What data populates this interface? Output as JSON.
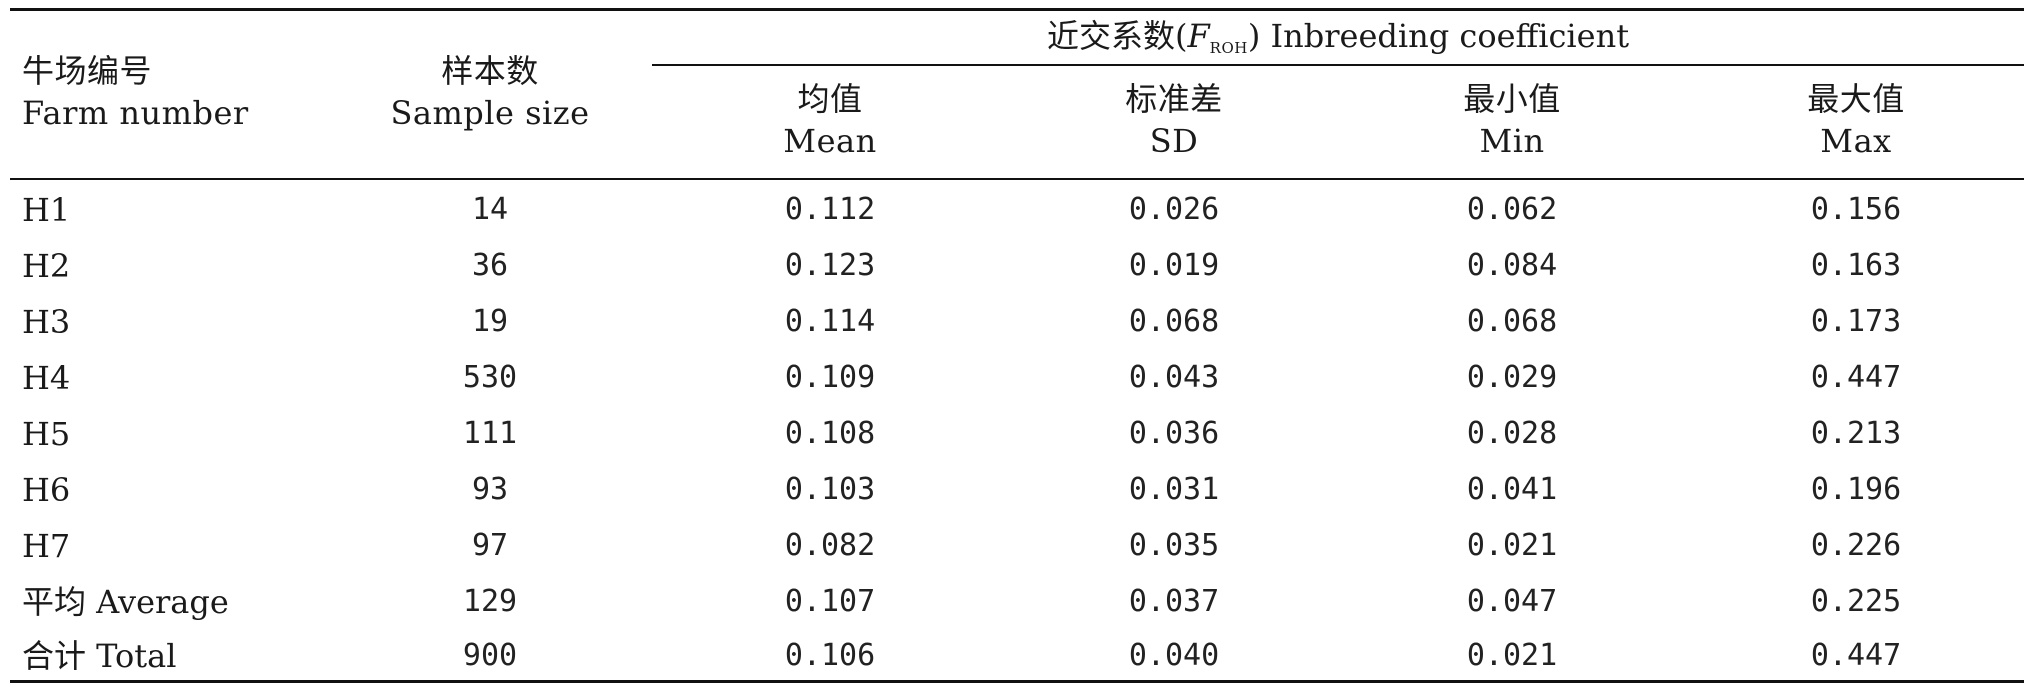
{
  "table": {
    "header": {
      "farm": {
        "zh": "牛场编号",
        "en": "Farm number"
      },
      "sample": {
        "zh": "样本数",
        "en": "Sample size"
      },
      "group": {
        "zh_prefix": "近交系数(",
        "f": "F",
        "sub": "ROH",
        "suffix": ") Inbreeding coefficient"
      },
      "mean": {
        "zh": "均值",
        "en": "Mean"
      },
      "sd": {
        "zh": "标准差",
        "en": "SD"
      },
      "min": {
        "zh": "最小值",
        "en": "Min"
      },
      "max": {
        "zh": "最大值",
        "en": "Max"
      }
    },
    "rows": [
      {
        "farm": "H1",
        "n": "14",
        "mean": "0.112",
        "sd": "0.026",
        "min": "0.062",
        "max": "0.156"
      },
      {
        "farm": "H2",
        "n": "36",
        "mean": "0.123",
        "sd": "0.019",
        "min": "0.084",
        "max": "0.163"
      },
      {
        "farm": "H3",
        "n": "19",
        "mean": "0.114",
        "sd": "0.068",
        "min": "0.068",
        "max": "0.173"
      },
      {
        "farm": "H4",
        "n": "530",
        "mean": "0.109",
        "sd": "0.043",
        "min": "0.029",
        "max": "0.447"
      },
      {
        "farm": "H5",
        "n": "111",
        "mean": "0.108",
        "sd": "0.036",
        "min": "0.028",
        "max": "0.213"
      },
      {
        "farm": "H6",
        "n": "93",
        "mean": "0.103",
        "sd": "0.031",
        "min": "0.041",
        "max": "0.196"
      },
      {
        "farm": "H7",
        "n": "97",
        "mean": "0.082",
        "sd": "0.035",
        "min": "0.021",
        "max": "0.226"
      },
      {
        "farm": "平均 Average",
        "n": "129",
        "mean": "0.107",
        "sd": "0.037",
        "min": "0.047",
        "max": "0.225"
      },
      {
        "farm": "合计 Total",
        "n": "900",
        "mean": "0.106",
        "sd": "0.040",
        "min": "0.021",
        "max": "0.447"
      }
    ]
  }
}
